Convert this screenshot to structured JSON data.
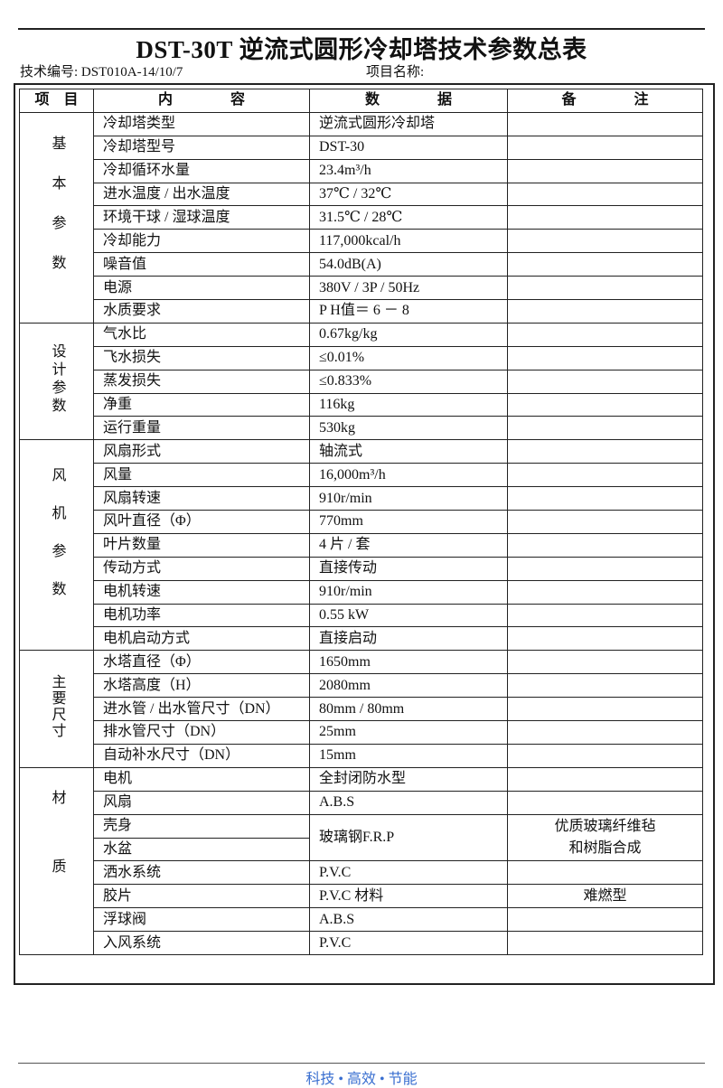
{
  "title": "DST-30T 逆流式圆形冷却塔技术参数总表",
  "tech_no": "技术编号: DST010A-14/10/7",
  "project_name": "项目名称:",
  "headers": [
    "项　目",
    "内　　　　容",
    "数　　　　据",
    "备　　　　注"
  ],
  "groups": [
    {
      "label": "基本参数",
      "spacing": "28px",
      "rows": [
        {
          "item": "冷却塔类型",
          "value": "逆流式圆形冷却塔",
          "note": ""
        },
        {
          "item": "冷却塔型号",
          "value": "DST-30",
          "note": ""
        },
        {
          "item": "冷却循环水量",
          "value": "23.4m³/h",
          "note": ""
        },
        {
          "item": "进水温度 / 出水温度",
          "value": "37℃ / 32℃",
          "note": ""
        },
        {
          "item": "环境干球 / 湿球温度",
          "value": "31.5℃ / 28℃",
          "note": ""
        },
        {
          "item": "冷却能力",
          "value": "117,000kcal/h",
          "note": ""
        },
        {
          "item": "噪音值",
          "value": "54.0dB(A)",
          "note": ""
        },
        {
          "item": "电源",
          "value": "380V / 3P / 50Hz",
          "note": ""
        },
        {
          "item": "水质要求",
          "value": " P H值＝ 6 － 8",
          "note": ""
        }
      ]
    },
    {
      "label": "设计参数",
      "spacing": "4px",
      "rows": [
        {
          "item": "气水比",
          "value": "0.67kg/kg",
          "note": ""
        },
        {
          "item": "飞水损失",
          "value": "≤0.01%",
          "note": ""
        },
        {
          "item": "蒸发损失",
          "value": "≤0.833%",
          "note": ""
        },
        {
          "item": "净重",
          "value": "116kg",
          "note": ""
        },
        {
          "item": "运行重量",
          "value": "530kg",
          "note": ""
        }
      ]
    },
    {
      "label": "风机参数",
      "spacing": "26px",
      "rows": [
        {
          "item": "风扇形式",
          "value": "轴流式",
          "note": ""
        },
        {
          "item": "风量",
          "value": "16,000m³/h",
          "note": ""
        },
        {
          "item": "风扇转速",
          "value": "910r/min",
          "note": ""
        },
        {
          "item": "风叶直径（Φ）",
          "value": "770mm",
          "note": ""
        },
        {
          "item": "叶片数量",
          "value": "4 片 / 套",
          "note": ""
        },
        {
          "item": "传动方式",
          "value": "直接传动",
          "note": ""
        },
        {
          "item": "电机转速",
          "value": "910r/min",
          "note": ""
        },
        {
          "item": "电机功率",
          "value": "0.55 kW",
          "note": ""
        },
        {
          "item": "电机启动方式",
          "value": "直接启动",
          "note": ""
        }
      ]
    },
    {
      "label": "主要尺寸",
      "spacing": "2px",
      "rows": [
        {
          "item": "水塔直径（Φ）",
          "value": "1650mm",
          "note": ""
        },
        {
          "item": "水塔高度（H）",
          "value": "2080mm",
          "note": ""
        },
        {
          "item": "进水管 / 出水管尺寸（DN）",
          "value": "80mm / 80mm",
          "note": ""
        },
        {
          "item": "排水管尺寸（DN）",
          "value": "25mm",
          "note": ""
        },
        {
          "item": "自动补水尺寸（DN）",
          "value": "15mm",
          "note": ""
        }
      ]
    },
    {
      "label": "材质",
      "spacing": "60px",
      "rows": [
        {
          "item": "电机",
          "value": "全封闭防水型",
          "note": ""
        },
        {
          "item": "风扇",
          "value": "A.B.S",
          "note": ""
        },
        {
          "item": "壳身",
          "value": "玻璃钢F.R.P",
          "note": "优质玻璃纤维毡\n和树脂合成",
          "span": 2
        },
        {
          "item": "水盆",
          "merged": true
        },
        {
          "item": "洒水系统",
          "value": "P.V.C",
          "note": ""
        },
        {
          "item": "胶片",
          "value": "P.V.C 材料",
          "note": "难燃型"
        },
        {
          "item": "浮球阀",
          "value": "A.B.S",
          "note": ""
        },
        {
          "item": "入风系统",
          "value": "P.V.C",
          "note": ""
        }
      ]
    }
  ],
  "footer": "科技 • 高效 • 节能"
}
